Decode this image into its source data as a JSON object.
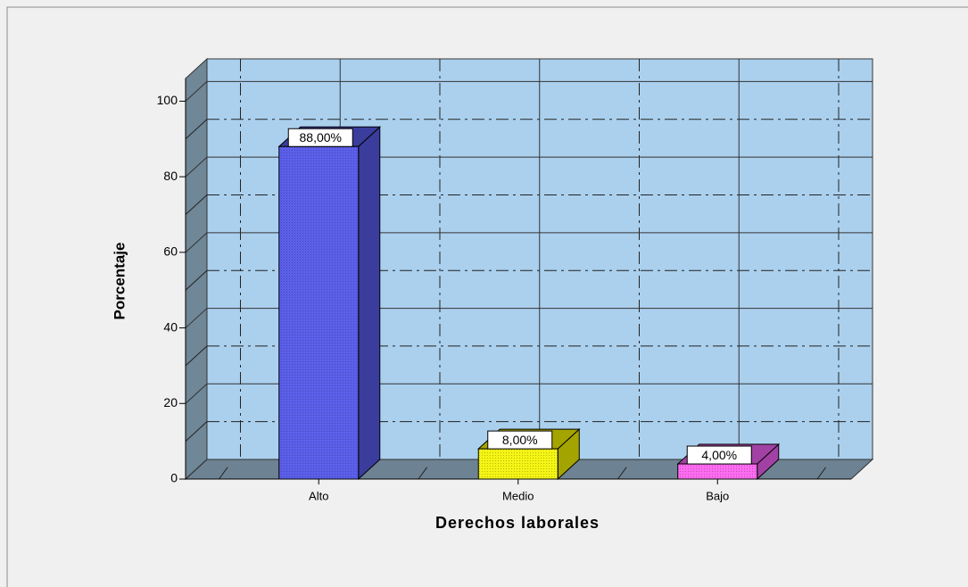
{
  "chart_data": {
    "type": "bar3d",
    "categories": [
      "Alto",
      "Medio",
      "Bajo"
    ],
    "values": [
      88,
      8,
      4
    ],
    "value_labels": [
      "88,00%",
      "8,00%",
      "4,00%"
    ],
    "colors": [
      "#5b5fea",
      "#f4f416",
      "#ff6cf0"
    ],
    "side_colors": [
      "#3b3d9c",
      "#a4a400",
      "#a241a4"
    ],
    "x_label": "Derechos laborales",
    "y_label": "Porcentaje",
    "ylim": [
      0,
      106
    ],
    "yticks": [
      0,
      20,
      40,
      60,
      80,
      100
    ],
    "minor_yticks": [
      10,
      30,
      50,
      70,
      90
    ],
    "grid": true
  }
}
